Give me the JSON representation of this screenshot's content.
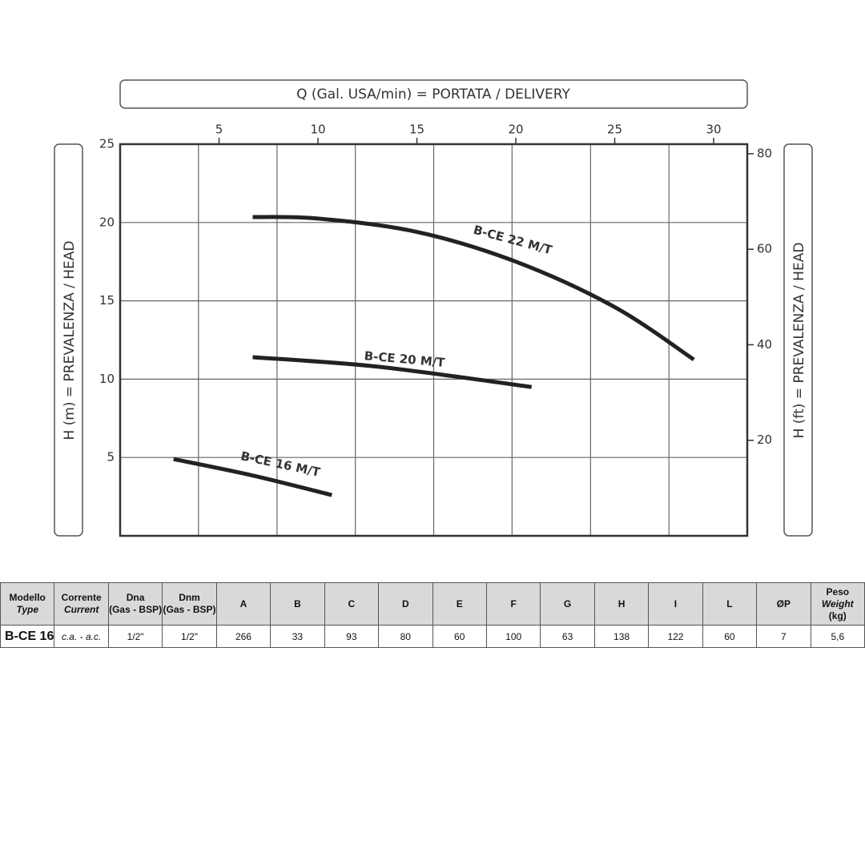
{
  "chart_data": {
    "type": "line",
    "x_title": "Q (Gal. USA/min) = PORTATA / DELIVERY",
    "y_title": "H (m) = PREVALENZA / HEAD",
    "y2_title": "H (ft) = PREVALENZA / HEAD",
    "xlim": [
      0,
      31.7
    ],
    "xticks": [
      5,
      10,
      15,
      20,
      25,
      30
    ],
    "xgrid": [
      3.96,
      7.93,
      11.89,
      15.85,
      19.81,
      23.78,
      27.74
    ],
    "ylim": [
      0,
      25
    ],
    "yticks": [
      5,
      10,
      15,
      20,
      25
    ],
    "y2lim": [
      0,
      82
    ],
    "y2ticks": [
      20,
      40,
      60,
      80
    ],
    "grid": true,
    "series": [
      {
        "name": "B-CE 22 M/T",
        "color": "#222222",
        "x": [
          6.7,
          10,
          15,
          20,
          25,
          29
        ],
        "values": [
          20.35,
          20.25,
          19.4,
          17.5,
          14.6,
          11.25
        ]
      },
      {
        "name": "B-CE 20 M/T",
        "color": "#222222",
        "x": [
          6.7,
          13,
          20.8
        ],
        "values": [
          11.4,
          10.8,
          9.5
        ]
      },
      {
        "name": "B-CE 16 M/T",
        "color": "#222222",
        "x": [
          2.7,
          6.7,
          10.7
        ],
        "values": [
          4.9,
          3.85,
          2.6
        ]
      }
    ]
  },
  "table": {
    "header": [
      [
        "Modello",
        "Type"
      ],
      [
        "Corrente",
        "Current"
      ],
      [
        "Dna",
        "(Gas - BSP)"
      ],
      [
        "Dnm",
        "(Gas - BSP)"
      ],
      [
        "A"
      ],
      [
        "B"
      ],
      [
        "C"
      ],
      [
        "D"
      ],
      [
        "E"
      ],
      [
        "F"
      ],
      [
        "G"
      ],
      [
        "H"
      ],
      [
        "I"
      ],
      [
        "L"
      ],
      [
        "ØP"
      ],
      [
        "Peso",
        "Weight",
        "(kg)"
      ]
    ],
    "rows": [
      [
        "B-CE 16",
        "c.a. - a.c.",
        "1/2\"",
        "1/2\"",
        "266",
        "33",
        "93",
        "80",
        "60",
        "100",
        "63",
        "138",
        "122",
        "60",
        "7",
        "5,6"
      ]
    ]
  }
}
